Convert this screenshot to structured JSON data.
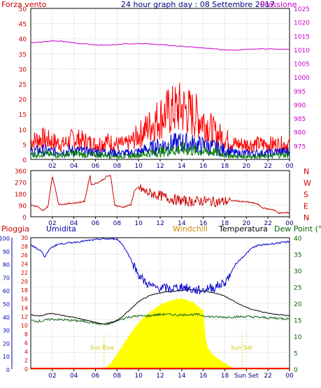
{
  "header": {
    "left_label": "Forza vento",
    "title": "24 hour graph day : 08 Settembre 2017",
    "right_label": "Pressione"
  },
  "colors": {
    "plot_bg": "#ffffff",
    "frame": "#000000",
    "grid": "#888888",
    "pressure": "#cc00cc",
    "gust": "#ff0000",
    "wind_avg": "#0000cc",
    "wind_min": "#008000",
    "direction": "#cc0000",
    "humidity": "#0000cc",
    "temperature": "#000000",
    "dewpoint": "#1a6b1a",
    "solar": "#ffff00",
    "rain": "#ff0000",
    "left_axis_red": "#cc0000",
    "left_axis_blue": "#0000aa",
    "right_axis_green": "#006600",
    "sun_label": "#cccc00",
    "windchill": "#cc8800"
  },
  "chart_data": [
    {
      "type": "line",
      "title": "24 hour graph day : 08 Settembre 2017",
      "x_ticks": [
        "02",
        "04",
        "06",
        "08",
        "10",
        "12",
        "14",
        "16",
        "18",
        "20",
        "22",
        "00"
      ],
      "x_range_hours": [
        0,
        24
      ],
      "ylabel_left": "Forza vento",
      "ylim_left": [
        0,
        50
      ],
      "yticks_left": [
        "50",
        "45",
        "40",
        "35",
        "30",
        "25",
        "20",
        "15",
        "10",
        "5",
        "0"
      ],
      "ylabel_right": "Pressione",
      "ylim_right": [
        970,
        1025
      ],
      "yticks_right": [
        "1025",
        "1020",
        "1015",
        "1010",
        "1005",
        "1000",
        "995",
        "990",
        "985",
        "980",
        "975"
      ],
      "series": [
        {
          "name": "Pressione",
          "axis": "right",
          "x": [
            0,
            1,
            2,
            3,
            4,
            5,
            6,
            7,
            8,
            9,
            10,
            11,
            12,
            13,
            14,
            15,
            16,
            17,
            18,
            19,
            20,
            21,
            22,
            23,
            24
          ],
          "values": [
            1012.5,
            1012.7,
            1013.2,
            1013.0,
            1012.4,
            1012.1,
            1011.7,
            1011.6,
            1011.8,
            1012.1,
            1012.2,
            1012.0,
            1011.8,
            1011.5,
            1011.2,
            1010.9,
            1010.6,
            1010.2,
            1009.9,
            1009.8,
            1010.1,
            1010.2,
            1010.3,
            1010.2,
            1010.1
          ]
        },
        {
          "axis": "left",
          "x": [
            0,
            1,
            2,
            3,
            4,
            5,
            6,
            7,
            8,
            9,
            10,
            11,
            12,
            13,
            14,
            15,
            16,
            17,
            18,
            19,
            20,
            21,
            22,
            23,
            24
          ],
          "values": [
            6,
            7,
            6,
            5,
            7,
            6,
            5,
            6,
            5,
            5,
            8,
            11,
            14,
            16,
            17,
            15,
            13,
            9,
            7,
            5,
            5,
            5,
            5,
            5,
            5
          ]
        },
        {
          "axis": "left",
          "x": [
            0,
            1,
            2,
            3,
            4,
            5,
            6,
            7,
            8,
            9,
            10,
            11,
            12,
            13,
            14,
            15,
            16,
            17,
            18,
            19,
            20,
            21,
            22,
            23,
            24
          ],
          "values": [
            2.5,
            3,
            2.5,
            2.5,
            3,
            2.5,
            2.5,
            2.5,
            2,
            2,
            2.5,
            3.5,
            4.5,
            5,
            5.5,
            5,
            4.5,
            4,
            3,
            2,
            2,
            2,
            2,
            2.5,
            2.5
          ]
        },
        {
          "axis": "left",
          "x": [
            0,
            1,
            2,
            3,
            4,
            5,
            6,
            7,
            8,
            9,
            10,
            11,
            12,
            13,
            14,
            15,
            16,
            17,
            18,
            19,
            20,
            21,
            22,
            23,
            24
          ],
          "values": [
            1.5,
            2,
            1.5,
            1.5,
            2,
            1.5,
            1.5,
            1.5,
            1,
            1,
            1.5,
            2,
            2.5,
            3,
            3.5,
            3,
            2.5,
            2.5,
            1.5,
            1,
            1,
            1,
            1,
            1.5,
            1.5
          ]
        }
      ]
    },
    {
      "type": "line",
      "x_ticks": [
        "02",
        "04",
        "06",
        "08",
        "10",
        "12",
        "14",
        "16",
        "18",
        "20",
        "22",
        "00"
      ],
      "x_range_hours": [
        0,
        24
      ],
      "ylim": [
        0,
        360
      ],
      "yticks": [
        "360",
        "270",
        "180",
        "90",
        "0"
      ],
      "cardinal_labels": [
        "N",
        "W",
        "S",
        "E",
        "N"
      ],
      "series": [
        {
          "axis": "left",
          "x": [
            0,
            0.6,
            1.1,
            1.3,
            1.6,
            2,
            2.6,
            3.2,
            3.8,
            4.4,
            5,
            5.5,
            5.6,
            6.2,
            6.9,
            7,
            7.4,
            7.8,
            8.2,
            8.6,
            9,
            9.3,
            9.6,
            10,
            10.5,
            11,
            11.5,
            12,
            12.5,
            13,
            13.5,
            14,
            14.5,
            15,
            15.5,
            16,
            16.5,
            17,
            17.5,
            18,
            18.5,
            19,
            19.5,
            20,
            20.5,
            21,
            21.5,
            22,
            22.5,
            23,
            23.5,
            24
          ],
          "values": [
            90,
            80,
            45,
            60,
            80,
            320,
            95,
            100,
            105,
            110,
            120,
            330,
            250,
            265,
            300,
            315,
            320,
            90,
            80,
            75,
            85,
            95,
            200,
            230,
            200,
            185,
            175,
            165,
            150,
            140,
            130,
            125,
            120,
            118,
            122,
            125,
            120,
            118,
            115,
            120,
            125,
            125,
            118,
            115,
            110,
            100,
            70,
            60,
            55,
            28,
            30,
            32
          ]
        }
      ]
    },
    {
      "type": "area",
      "x_ticks": [
        "02",
        "04",
        "06",
        "08",
        "10",
        "12",
        "14",
        "16",
        "18",
        "Sun Set",
        "22",
        "00"
      ],
      "x_range_hours": [
        0,
        24
      ],
      "legend": [
        "Pioggia",
        "Umidita",
        "Windchill",
        "Temperatura",
        "Dew Point (°C"
      ],
      "ylim_left_outer": [
        0,
        100
      ],
      "yticks_left_outer": [
        "100",
        "90",
        "80",
        "70",
        "60",
        "50",
        "40",
        "30",
        "20",
        "10",
        "0"
      ],
      "ylim_left_inner": [
        0,
        30
      ],
      "yticks_left_inner": [
        "30",
        "28",
        "26",
        "24",
        "22",
        "20",
        "18",
        "16",
        "14",
        "12",
        "10",
        "8",
        "6",
        "4",
        "2",
        "0"
      ],
      "ylim_right": [
        0,
        40
      ],
      "yticks_right": [
        "40",
        "35",
        "30",
        "25",
        "20",
        "15",
        "10",
        "5",
        "0"
      ],
      "annotations": [
        "Sun Rise",
        "Sun Set"
      ],
      "series": [
        {
          "name": "Umidita",
          "axis": "left_outer",
          "x": [
            0,
            0.5,
            1,
            1.3,
            1.8,
            2.5,
            3.5,
            4.5,
            5.5,
            6.5,
            7.5,
            8,
            8.5,
            9,
            9.5,
            10,
            10.5,
            11,
            11.5,
            12,
            13,
            14,
            15,
            16,
            16.5,
            17,
            17.5,
            18,
            18.5,
            19,
            20,
            20.5,
            21,
            22,
            23,
            24
          ],
          "values": [
            95,
            92,
            90,
            85,
            92,
            95,
            96,
            97,
            98,
            99,
            99,
            99,
            95,
            88,
            80,
            72,
            67,
            64,
            62,
            62,
            61,
            63,
            60,
            60,
            62,
            62,
            64,
            66,
            72,
            80,
            88,
            92,
            94,
            95,
            96,
            97
          ]
        },
        {
          "name": "Temperatura",
          "axis": "right",
          "x": [
            0,
            0.5,
            1,
            1.5,
            2,
            2.5,
            3,
            3.5,
            4,
            4.5,
            5,
            5.5,
            6,
            6.5,
            7,
            7.5,
            8,
            8.5,
            9,
            9.5,
            10,
            10.5,
            11,
            11.5,
            12,
            12.5,
            13,
            13.5,
            14,
            14.5,
            15,
            15.5,
            16,
            16.5,
            17,
            17.5,
            18,
            18.5,
            19,
            19.5,
            20,
            20.5,
            21,
            21.5,
            22,
            22.5,
            23,
            23.5,
            24
          ],
          "values": [
            16.5,
            16.3,
            16.2,
            16.8,
            17.0,
            16.6,
            16.3,
            16.0,
            15.8,
            15.4,
            15.0,
            14.6,
            14.2,
            13.8,
            13.6,
            14.0,
            14.8,
            16.0,
            17.5,
            19.0,
            20.5,
            21.5,
            22.3,
            22.8,
            23.2,
            23.5,
            23.6,
            23.8,
            24.0,
            24.1,
            24.1,
            24.0,
            23.8,
            23.5,
            23.2,
            22.8,
            22.2,
            21.3,
            20.4,
            19.5,
            18.8,
            18.2,
            17.8,
            17.4,
            17.1,
            16.8,
            16.6,
            16.4,
            16.2
          ]
        },
        {
          "name": "Dew Point (°C",
          "axis": "right",
          "x": [
            0,
            0.5,
            1,
            1.5,
            2,
            3,
            4,
            5,
            6,
            6.5,
            7,
            7.5,
            8,
            8.5,
            9,
            9.5,
            10,
            10.5,
            11,
            11.5,
            12,
            12.5,
            13,
            13.5,
            14,
            14.5,
            15,
            15.5,
            16,
            16.5,
            17,
            18,
            19,
            20,
            21,
            22,
            23,
            24
          ],
          "values": [
            14.8,
            14.6,
            14.6,
            15.0,
            15.2,
            15.0,
            14.8,
            14.5,
            14.0,
            13.7,
            13.8,
            14.2,
            14.8,
            15.3,
            15.8,
            16.0,
            16.2,
            16.2,
            16.2,
            16.5,
            16.6,
            16.7,
            16.6,
            16.5,
            16.5,
            16.6,
            16.6,
            16.6,
            16.3,
            16.0,
            15.9,
            15.8,
            15.9,
            16.0,
            15.8,
            15.6,
            15.5,
            15.3
          ]
        },
        {
          "name": "Solar",
          "axis": "right",
          "x": [
            0,
            6.5,
            7,
            7.5,
            8,
            8.5,
            9,
            9.5,
            10,
            10.5,
            11,
            11.5,
            12,
            12.5,
            13,
            13.5,
            14,
            14.5,
            15,
            15.5,
            16,
            16.2,
            16.4,
            16.6,
            17,
            17.5,
            18,
            18.5,
            18.8,
            19,
            24
          ],
          "values": [
            0,
            0,
            0.5,
            2,
            4.5,
            7,
            9.5,
            12,
            14,
            15.8,
            17.2,
            18.4,
            19.5,
            20.2,
            20.8,
            21.2,
            21.3,
            21.0,
            20.3,
            19.2,
            17.6,
            9.5,
            6.5,
            5.5,
            4.0,
            2.8,
            1.8,
            0.8,
            0.3,
            0,
            0
          ]
        },
        {
          "name": "Pioggia",
          "axis": "left_inner",
          "x": [
            0,
            24
          ],
          "values": [
            0,
            0
          ]
        }
      ]
    }
  ]
}
